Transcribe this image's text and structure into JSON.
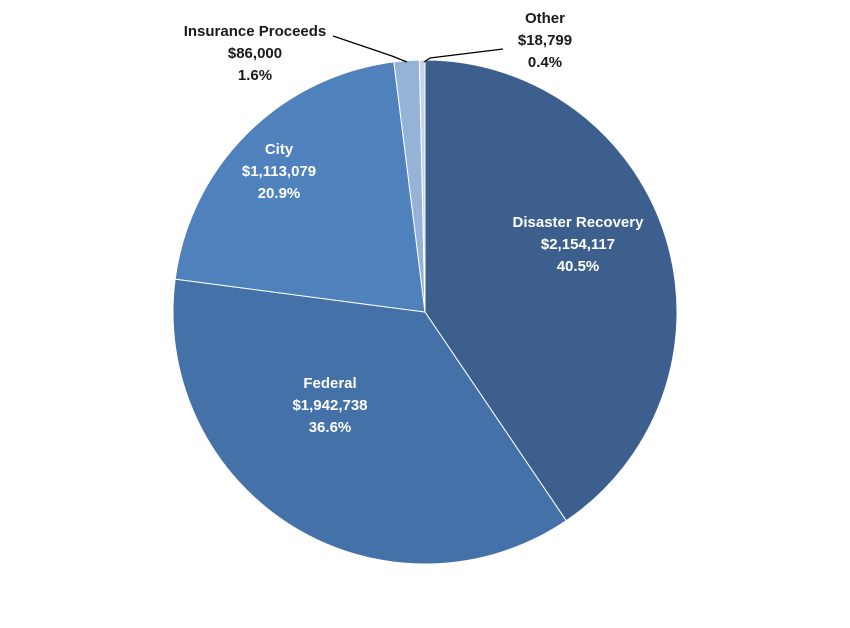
{
  "chart_data": {
    "type": "pie",
    "title": "",
    "slices": [
      {
        "name": "Disaster Recovery",
        "value": 2154117,
        "value_label": "$2,154,117",
        "percent_label": "40.5%",
        "color": "#3C5F8E"
      },
      {
        "name": "Federal",
        "value": 1942738,
        "value_label": "$1,942,738",
        "percent_label": "36.6%",
        "color": "#4571A9"
      },
      {
        "name": "City",
        "value": 1113079,
        "value_label": "$1,113,079",
        "percent_label": "20.9%",
        "color": "#4F81BD"
      },
      {
        "name": "Insurance Proceeds",
        "value": 86000,
        "value_label": "$86,000",
        "percent_label": "1.6%",
        "color": "#95B3D7"
      },
      {
        "name": "Other",
        "value": 18799,
        "value_label": "$18,799",
        "percent_label": "0.4%",
        "color": "#C6D4E8"
      }
    ]
  }
}
